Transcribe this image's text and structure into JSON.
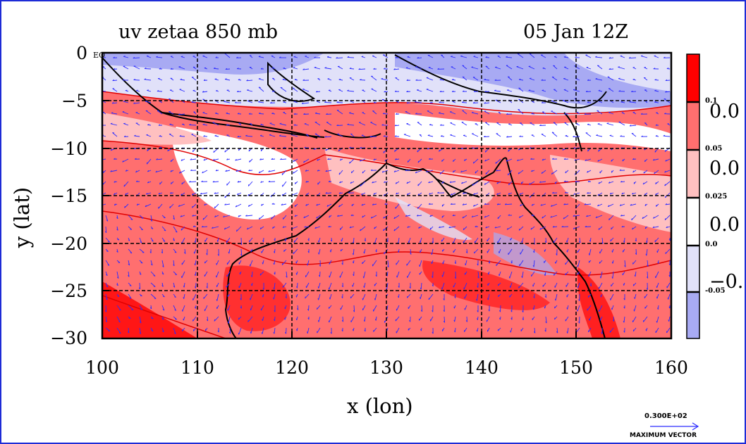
{
  "title": {
    "variable": "uv zetaa 850 mb",
    "time": "05 Jan 12Z"
  },
  "axes": {
    "xlabel": "x (lon)",
    "ylabel": "y (lat)",
    "x_ticks": [
      "100",
      "110",
      "120",
      "130",
      "140",
      "150",
      "160"
    ],
    "y_ticks": [
      "0",
      "−5",
      "−10",
      "−15",
      "−20",
      "−25",
      "−30"
    ],
    "x_range": [
      100,
      160
    ],
    "y_range": [
      -30,
      0
    ],
    "grid": "dashed"
  },
  "map_annotation": "EQ",
  "colorbar": {
    "levels": [
      {
        "color": "#ff0000"
      },
      {
        "color": "#ff6f6f"
      },
      {
        "color": "#ffc0c0"
      },
      {
        "color": "#ffffff"
      },
      {
        "color": "#e1e1f9"
      },
      {
        "color": "#a8aaf3"
      }
    ],
    "small_labels": [
      "0.1",
      "0.05",
      "0.025",
      "0.0",
      "-0.05"
    ],
    "large_labels": [
      "0.0",
      "0.0",
      "0.0",
      "−0."
    ]
  },
  "vector_legend": {
    "value": "0.300E+02",
    "label": "MAXIMUM VECTOR"
  },
  "colors": {
    "coast": "#000000",
    "vectors": "#2b2bff",
    "contour": "#e00000",
    "frame": "#1d2bd6"
  }
}
